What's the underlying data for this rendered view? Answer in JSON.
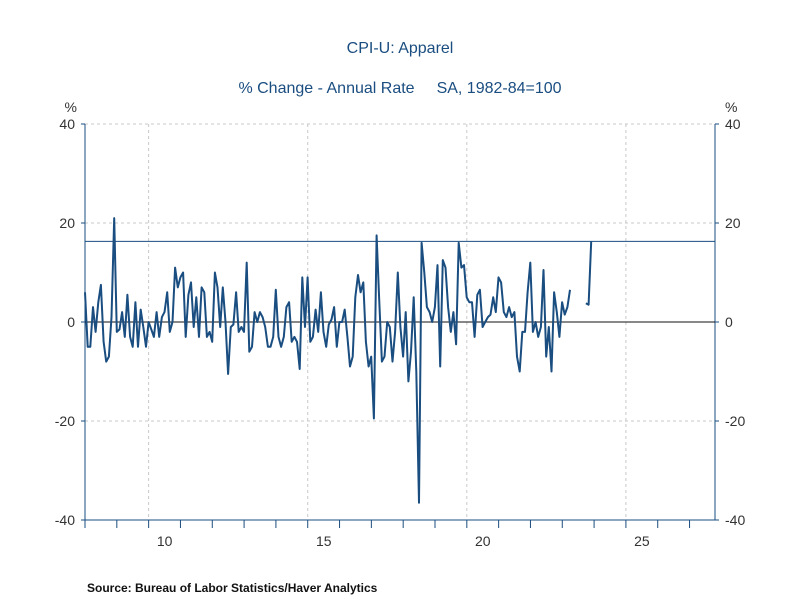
{
  "chart_data": {
    "type": "line",
    "title": "CPI-U: Apparel",
    "subtitle_left": "% Change - Annual Rate",
    "subtitle_right": "SA, 1982-84=100",
    "ylabel_left": "%",
    "ylabel_right": "%",
    "ylim": [
      -40,
      40
    ],
    "yticks": [
      -40,
      -20,
      0,
      20,
      40
    ],
    "xlim": [
      2008,
      2027.8
    ],
    "xticks": [
      2010,
      2015,
      2020,
      2025
    ],
    "xtick_labels": [
      "10",
      "15",
      "20",
      "25"
    ],
    "grid": true,
    "reference_line": 16.3,
    "zero_line": 0,
    "series": [
      {
        "name": "CPI-U: Apparel",
        "color": "#1a4d80",
        "start": 2008.0,
        "step": 0.0833,
        "values": [
          6.0,
          -5.0,
          -5.0,
          3.0,
          -2.0,
          4.0,
          7.5,
          -4.0,
          -8.0,
          -7.0,
          1.0,
          21.0,
          -2.0,
          -1.5,
          2.0,
          -3.0,
          5.5,
          -3.0,
          -5.0,
          4.0,
          -5.0,
          2.5,
          -1.0,
          -5.0,
          0.0,
          -1.5,
          -3.0,
          2.0,
          -3.0,
          1.0,
          2.0,
          6.0,
          -2.0,
          0.0,
          11.0,
          7.0,
          9.0,
          10.0,
          -3.0,
          5.5,
          8.0,
          -1.0,
          5.0,
          -3.0,
          7.0,
          6.0,
          -3.0,
          -2.0,
          -4.0,
          10.0,
          7.0,
          -1.0,
          7.0,
          0.0,
          -10.5,
          -1.0,
          -0.5,
          6.0,
          -2.0,
          -1.0,
          -2.0,
          12.0,
          -6.0,
          -5.0,
          2.0,
          0.0,
          2.0,
          1.0,
          -1.0,
          -5.0,
          -5.0,
          -3.0,
          6.5,
          -3.0,
          -5.0,
          -3.0,
          3.0,
          4.0,
          -4.0,
          -3.0,
          -4.0,
          -9.5,
          9.0,
          -1.0,
          9.0,
          -4.0,
          -3.0,
          2.5,
          -2.0,
          6.0,
          -2.0,
          -5.0,
          -0.5,
          0.5,
          3.0,
          -5.0,
          0.0,
          0.0,
          2.5,
          -3.0,
          -9.0,
          -7.0,
          5.0,
          9.5,
          6.0,
          8.0,
          -4.0,
          -9.0,
          -7.0,
          -19.5,
          17.5,
          4.5,
          -8.0,
          -7.0,
          0.0,
          -1.0,
          -8.0,
          -2.0,
          10.0,
          -1.0,
          -7.0,
          2.0,
          -12.0,
          -6.0,
          5.0,
          -10.0,
          -36.5,
          16.0,
          10.0,
          3.0,
          2.0,
          0.0,
          3.0,
          11.5,
          -9.0,
          12.5,
          11.0,
          3.0,
          -2.0,
          2.0,
          -4.5,
          16.0,
          11.0,
          11.5,
          5.0,
          4.0,
          4.0,
          -3.0,
          5.5,
          6.5,
          -1.0,
          0.0,
          1.0,
          1.5,
          5.0,
          2.0,
          9.0,
          8.0,
          2.0,
          1.0,
          3.0,
          1.0,
          2.0,
          -7.0,
          -10.0,
          -2.0,
          -2.0,
          6.0,
          12.0,
          -2.0,
          0.0,
          -3.0,
          -1.0,
          10.5,
          -7.0,
          -1.0,
          -10.0,
          6.0,
          2.0,
          -3.0,
          4.0,
          1.5,
          3.0,
          6.5,
          null,
          null,
          null,
          null,
          null,
          3.8,
          3.5,
          16.3
        ]
      }
    ],
    "source": "Source:  Bureau of Labor Statistics/Haver Analytics"
  }
}
